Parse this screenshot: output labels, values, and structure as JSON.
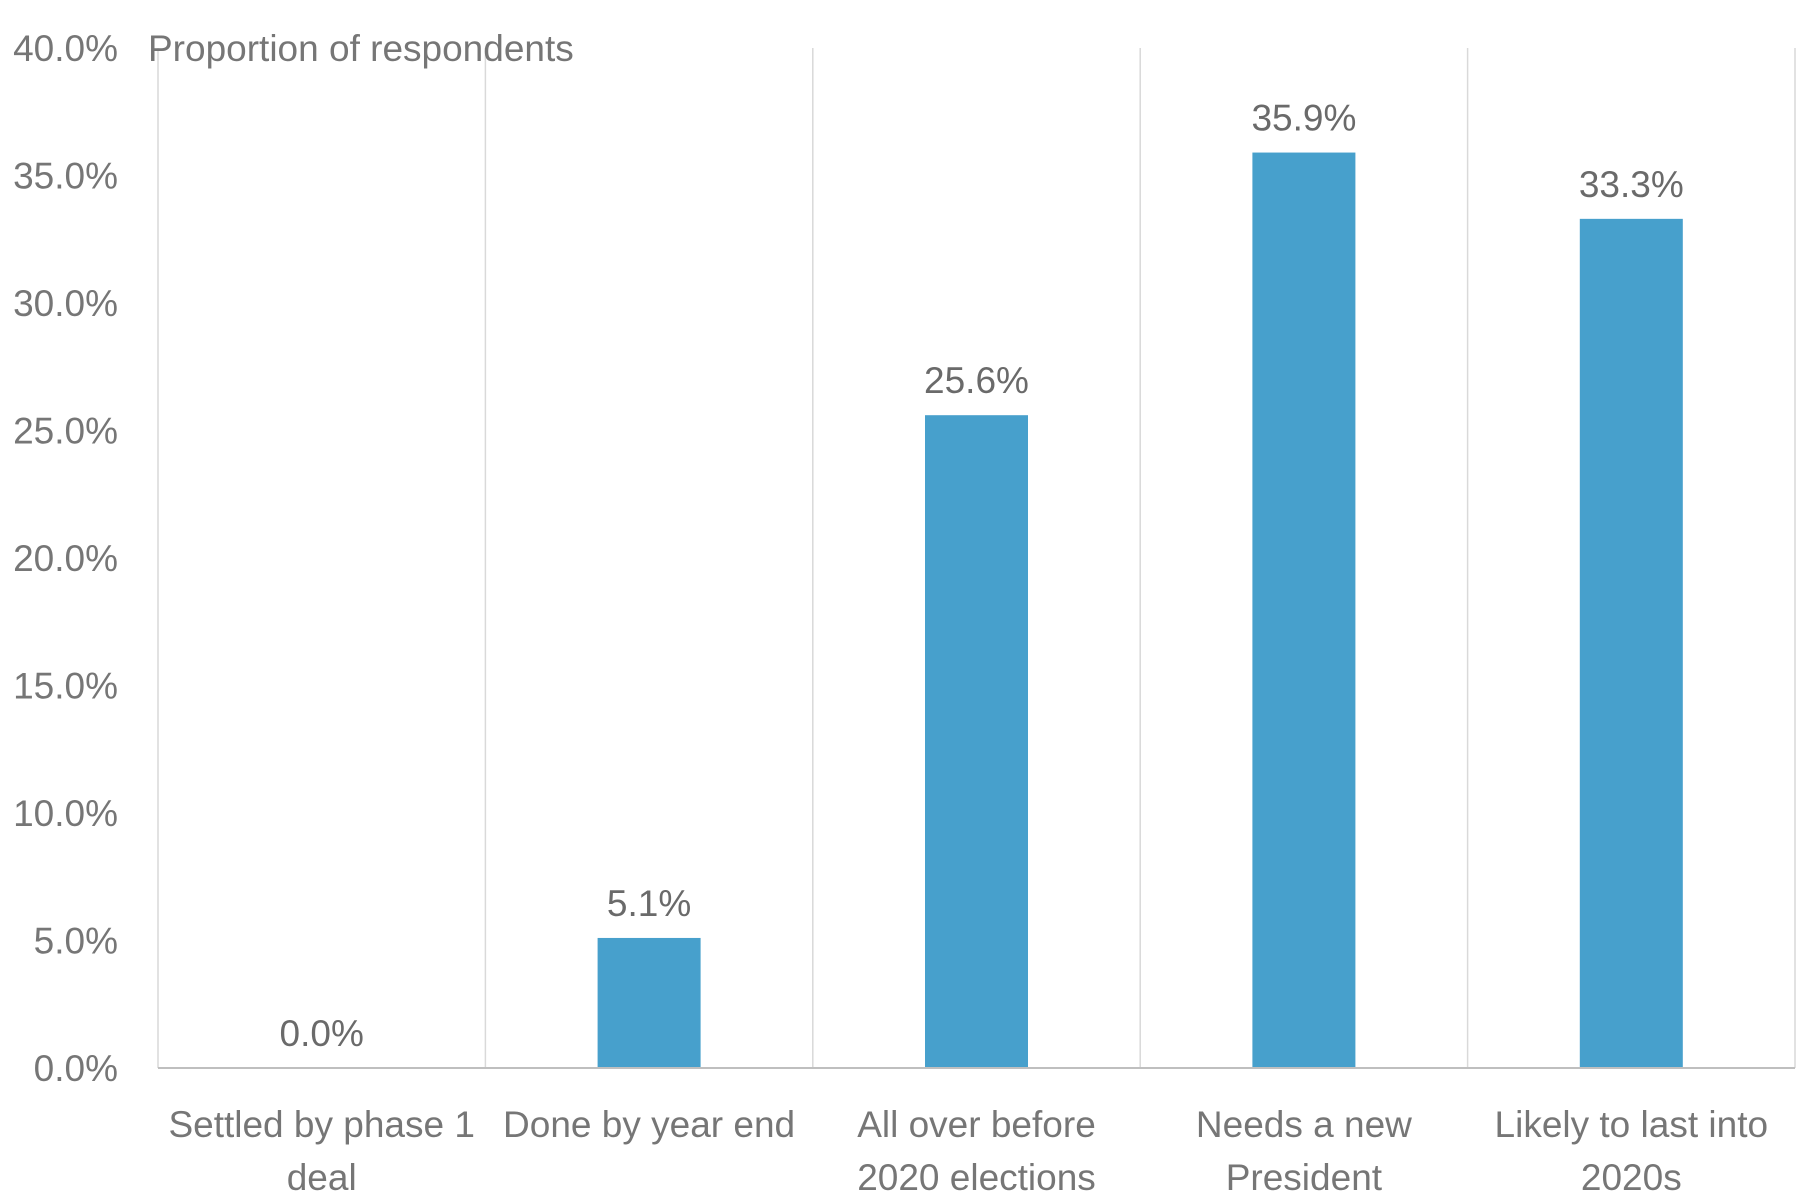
{
  "chart_data": {
    "type": "bar",
    "title": "",
    "ylabel": "Proportion of respondents",
    "xlabel": "",
    "ylim": [
      0,
      40
    ],
    "yticks": [
      "0.0%",
      "5.0%",
      "10.0%",
      "15.0%",
      "20.0%",
      "25.0%",
      "30.0%",
      "35.0%",
      "40.0%"
    ],
    "categories": [
      [
        "Settled by phase 1",
        "deal"
      ],
      [
        "Done by year end"
      ],
      [
        "All over before",
        "2020 elections"
      ],
      [
        "Needs a new",
        "President"
      ],
      [
        "Likely to last into",
        "2020s"
      ]
    ],
    "values": [
      0.0,
      5.1,
      25.6,
      35.9,
      33.3
    ],
    "data_labels": [
      "0.0%",
      "5.1%",
      "25.6%",
      "35.9%",
      "33.3%"
    ],
    "bar_color": "#47A0CC",
    "grid": "vertical category separators"
  }
}
